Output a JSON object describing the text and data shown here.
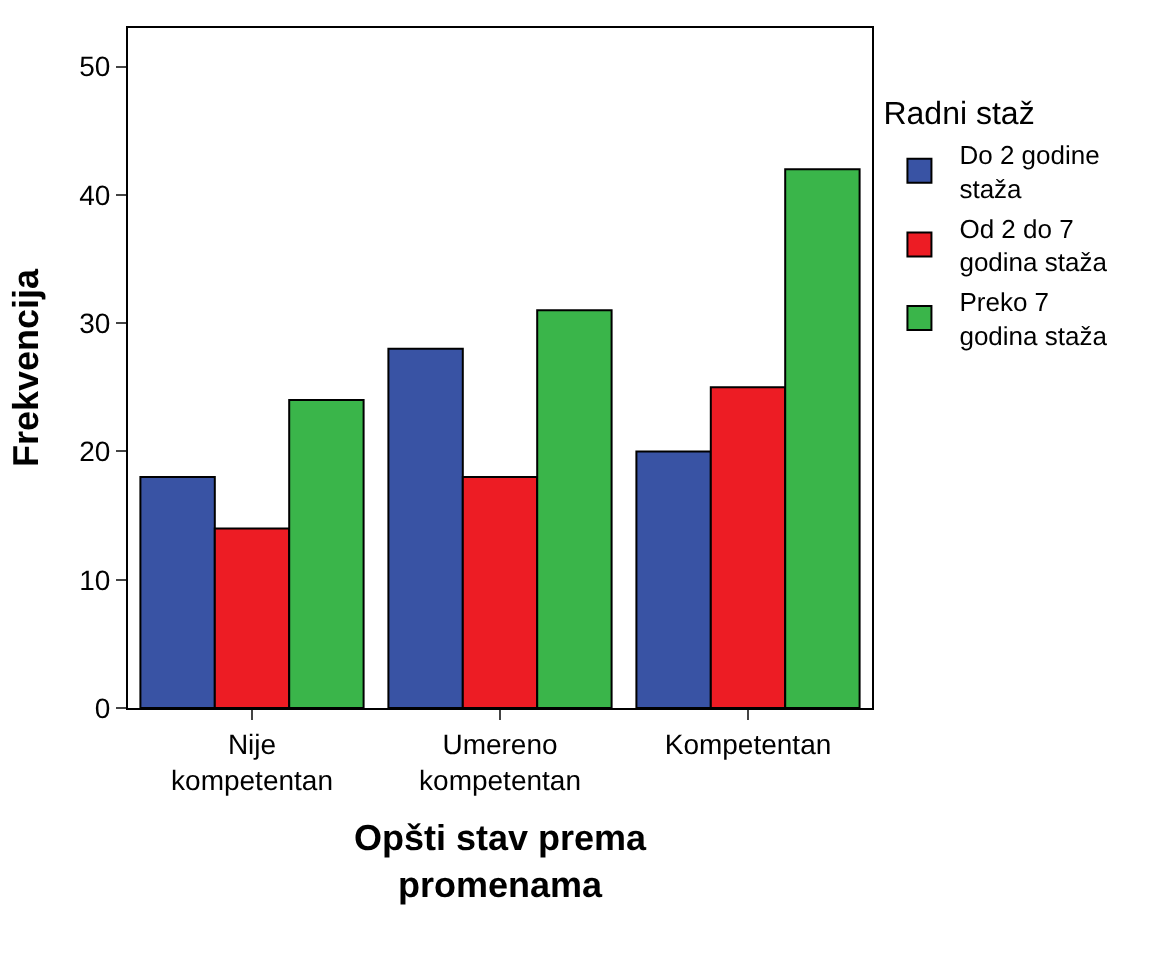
{
  "chart_data": {
    "type": "bar",
    "xlabel": "Opšti stav prema\npromenama",
    "ylabel": "Frekvencija",
    "legend_title": "Radni staž",
    "categories": [
      "Nije\nkompetentan",
      "Umereno\nkompetentan",
      "Kompetentan"
    ],
    "series": [
      {
        "name": "Do 2 godine\nstaža",
        "color": "#3953a4",
        "values": [
          18,
          28,
          20
        ]
      },
      {
        "name": "Od 2 do 7\ngodina staža",
        "color": "#ed1c24",
        "values": [
          14,
          18,
          25
        ]
      },
      {
        "name": "Preko 7\ngodina staža",
        "color": "#3ab54a",
        "values": [
          24,
          31,
          42
        ]
      }
    ],
    "ylim": [
      0,
      53
    ],
    "yticks": [
      0,
      10,
      20,
      30,
      40,
      50
    ],
    "legend": "top right"
  }
}
